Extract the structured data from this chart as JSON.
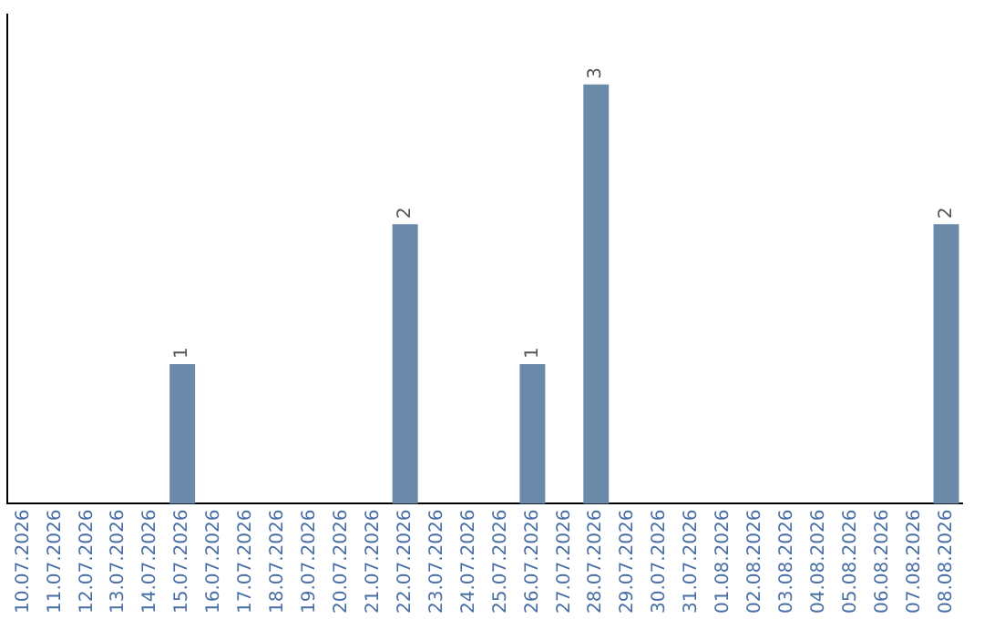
{
  "chart_data": {
    "type": "bar",
    "categories": [
      "10.07.2026",
      "11.07.2026",
      "12.07.2026",
      "13.07.2026",
      "14.07.2026",
      "15.07.2026",
      "16.07.2026",
      "17.07.2026",
      "18.07.2026",
      "19.07.2026",
      "20.07.2026",
      "21.07.2026",
      "22.07.2026",
      "23.07.2026",
      "24.07.2026",
      "25.07.2026",
      "26.07.2026",
      "27.07.2026",
      "28.07.2026",
      "29.07.2026",
      "30.07.2026",
      "31.07.2026",
      "01.08.2026",
      "02.08.2026",
      "03.08.2026",
      "04.08.2026",
      "05.08.2026",
      "06.08.2026",
      "07.08.2026",
      "08.08.2026"
    ],
    "values": [
      0,
      0,
      0,
      0,
      0,
      1,
      0,
      0,
      0,
      0,
      0,
      0,
      2,
      0,
      0,
      0,
      1,
      0,
      3,
      0,
      0,
      0,
      0,
      0,
      0,
      0,
      0,
      0,
      0,
      2
    ],
    "value_labels": [
      null,
      null,
      null,
      null,
      null,
      "1",
      null,
      null,
      null,
      null,
      null,
      null,
      "2",
      null,
      null,
      null,
      "1",
      null,
      "3",
      null,
      null,
      null,
      null,
      null,
      null,
      null,
      null,
      null,
      null,
      "2"
    ],
    "color": "#6b8aaa",
    "grid": false,
    "legend": false
  }
}
